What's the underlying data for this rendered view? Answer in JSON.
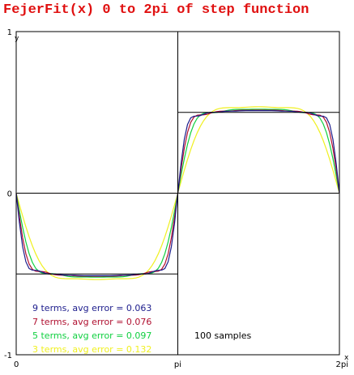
{
  "title": "FejerFit(x)  0 to 2pi of step function",
  "chart_data": {
    "type": "line",
    "title": "FejerFit(x)  0 to 2pi of step function",
    "xlabel": "x",
    "ylabel": "y",
    "xlim": [
      0,
      6.2832
    ],
    "ylim": [
      -1,
      1
    ],
    "x_ticks": [
      {
        "value": 0,
        "label": "0"
      },
      {
        "value": 3.1416,
        "label": "pi"
      },
      {
        "value": 6.2832,
        "label": "2pi"
      }
    ],
    "y_ticks": [
      {
        "value": 1,
        "label": "1"
      },
      {
        "value": 0,
        "label": "0"
      },
      {
        "value": -1,
        "label": "-1"
      }
    ],
    "grid": false,
    "legend_position": "bottom-left",
    "annotation": "100 samples",
    "samples": 100,
    "target": {
      "name": "step function",
      "color": "#000000",
      "x": [
        0,
        0.0001,
        3.1415,
        3.1417,
        6.2831,
        6.2832
      ],
      "y": [
        0,
        -0.5,
        -0.5,
        0.5,
        0.5,
        0
      ]
    },
    "series": [
      {
        "name": "9 terms",
        "label": "9 terms,  avg error = 0.063",
        "terms": 9,
        "avg_error": 0.063,
        "color": "#1c1c8c"
      },
      {
        "name": "7 terms",
        "label": "7 terms,  avg error = 0.076",
        "terms": 7,
        "avg_error": 0.076,
        "color": "#b01030"
      },
      {
        "name": "5 terms",
        "label": "5 terms,  avg error = 0.097",
        "terms": 5,
        "avg_error": 0.097,
        "color": "#10d040"
      },
      {
        "name": "3 terms",
        "label": "3 terms,  avg error = 0.132",
        "terms": 3,
        "avg_error": 0.132,
        "color": "#f0f020"
      }
    ]
  }
}
